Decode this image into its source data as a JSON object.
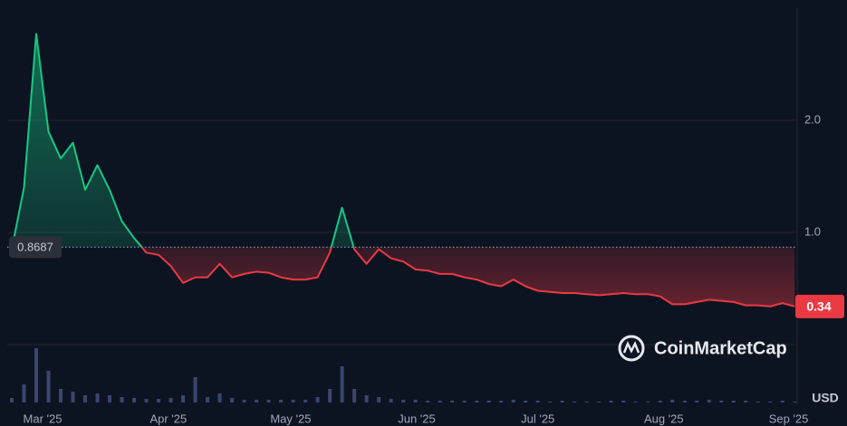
{
  "chart_data": {
    "type": "line",
    "values": [
      0.85,
      1.4,
      2.77,
      1.9,
      1.66,
      1.8,
      1.38,
      1.6,
      1.38,
      1.1,
      0.95,
      0.82,
      0.8,
      0.7,
      0.55,
      0.6,
      0.6,
      0.72,
      0.6,
      0.63,
      0.65,
      0.64,
      0.6,
      0.58,
      0.58,
      0.6,
      0.82,
      1.22,
      0.85,
      0.72,
      0.85,
      0.77,
      0.74,
      0.67,
      0.66,
      0.63,
      0.63,
      0.6,
      0.58,
      0.54,
      0.52,
      0.58,
      0.52,
      0.48,
      0.47,
      0.46,
      0.46,
      0.45,
      0.44,
      0.45,
      0.46,
      0.45,
      0.45,
      0.43,
      0.36,
      0.36,
      0.38,
      0.4,
      0.39,
      0.38,
      0.35,
      0.35,
      0.34,
      0.37,
      0.34
    ],
    "volume": [
      5,
      20,
      60,
      35,
      15,
      12,
      8,
      10,
      8,
      6,
      5,
      4,
      4,
      5,
      8,
      28,
      6,
      10,
      5,
      3,
      3,
      3,
      3,
      3,
      3,
      6,
      15,
      40,
      15,
      8,
      6,
      4,
      3,
      3,
      2,
      2,
      2,
      2,
      2,
      2,
      2,
      3,
      2,
      2,
      1,
      2,
      1,
      1,
      1,
      2,
      2,
      1,
      1,
      2,
      3,
      2,
      2,
      3,
      2,
      2,
      2,
      1,
      1,
      2,
      1
    ],
    "reference": 0.8687,
    "up_color": "#16c784",
    "down_color": "#ea3943",
    "volume_color": "#3a4670",
    "xlim": [
      0,
      64.2
    ],
    "xticks": [
      {
        "value": 2.52,
        "label": "Mar '25"
      },
      {
        "value": 12.8,
        "label": "Apr '25"
      },
      {
        "value": 22.8,
        "label": "May '25"
      },
      {
        "value": 33.1,
        "label": "Jun '25"
      },
      {
        "value": 43.0,
        "label": "Jul '25"
      },
      {
        "value": 53.3,
        "label": "Aug '25"
      },
      {
        "value": 63.5,
        "label": "Sep '25"
      }
    ],
    "ylim": [
      0,
      3
    ],
    "yticks": [
      {
        "value": 1,
        "label": "1.0"
      },
      {
        "value": 2,
        "label": "2.0"
      }
    ],
    "grid": true,
    "unit": "USD",
    "watermark": "CoinMarketCap"
  }
}
